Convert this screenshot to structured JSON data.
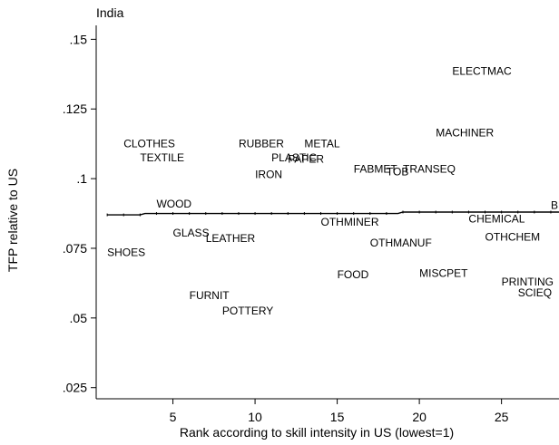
{
  "chart_data": {
    "type": "scatter",
    "title": "India",
    "xlabel": "Rank according to skill intensity in US (lowest=1)",
    "ylabel": "TFP relative to US",
    "xlim": [
      0.33,
      28.5
    ],
    "ylim": [
      0.021,
      0.155
    ],
    "xticks": [
      5,
      10,
      15,
      20,
      25
    ],
    "xtick_labels": [
      "5",
      "10",
      "15",
      "20",
      "25"
    ],
    "yticks": [
      0.025,
      0.05,
      0.075,
      0.1,
      0.125,
      0.15
    ],
    "ytick_labels": [
      ".025",
      ".05",
      ".075",
      ".1",
      ".125",
      ".15"
    ],
    "grid": false,
    "points": [
      {
        "label": "SHOES",
        "x": 1,
        "y": 0.0735
      },
      {
        "label": "CLOTHES",
        "x": 2,
        "y": 0.1125
      },
      {
        "label": "TEXTILE",
        "x": 3,
        "y": 0.1075
      },
      {
        "label": "WOOD",
        "x": 4,
        "y": 0.091
      },
      {
        "label": "GLASS",
        "x": 5,
        "y": 0.0805
      },
      {
        "label": "FURNIT",
        "x": 6,
        "y": 0.058
      },
      {
        "label": "LEATHER",
        "x": 7,
        "y": 0.0785
      },
      {
        "label": "POTTERY",
        "x": 8,
        "y": 0.0525
      },
      {
        "label": "RUBBER",
        "x": 9,
        "y": 0.1125
      },
      {
        "label": "IRON",
        "x": 10,
        "y": 0.1015
      },
      {
        "label": "PLASTIC",
        "x": 11,
        "y": 0.1075
      },
      {
        "label": "PAPER",
        "x": 12,
        "y": 0.107
      },
      {
        "label": "METAL",
        "x": 13,
        "y": 0.1125
      },
      {
        "label": "OTHMINER",
        "x": 14,
        "y": 0.0845
      },
      {
        "label": "FOOD",
        "x": 15,
        "y": 0.0655
      },
      {
        "label": "FABMET",
        "x": 16,
        "y": 0.1035
      },
      {
        "label": "OTHMANUF",
        "x": 17,
        "y": 0.077
      },
      {
        "label": "TOB",
        "x": 18,
        "y": 0.1025
      },
      {
        "label": "TRANSEQ",
        "x": 19,
        "y": 0.1035
      },
      {
        "label": "MISCPET",
        "x": 20,
        "y": 0.066
      },
      {
        "label": "MACHINER",
        "x": 21,
        "y": 0.1165
      },
      {
        "label": "ELECTMAC",
        "x": 22,
        "y": 0.1385
      },
      {
        "label": "CHEMICAL",
        "x": 23,
        "y": 0.0855
      },
      {
        "label": "OTHCHEM",
        "x": 24,
        "y": 0.079
      },
      {
        "label": "PRINTING",
        "x": 25,
        "y": 0.063
      },
      {
        "label": "SCIEQ",
        "x": 26,
        "y": 0.059
      },
      {
        "label": "BEV",
        "x": 28,
        "y": 0.0905
      }
    ],
    "fit_line": [
      {
        "x": 1,
        "y": 0.087
      },
      {
        "x": 3,
        "y": 0.087
      },
      {
        "x": 3.3,
        "y": 0.0875
      },
      {
        "x": 18.7,
        "y": 0.0875
      },
      {
        "x": 19,
        "y": 0.088
      },
      {
        "x": 28.5,
        "y": 0.088
      }
    ]
  }
}
